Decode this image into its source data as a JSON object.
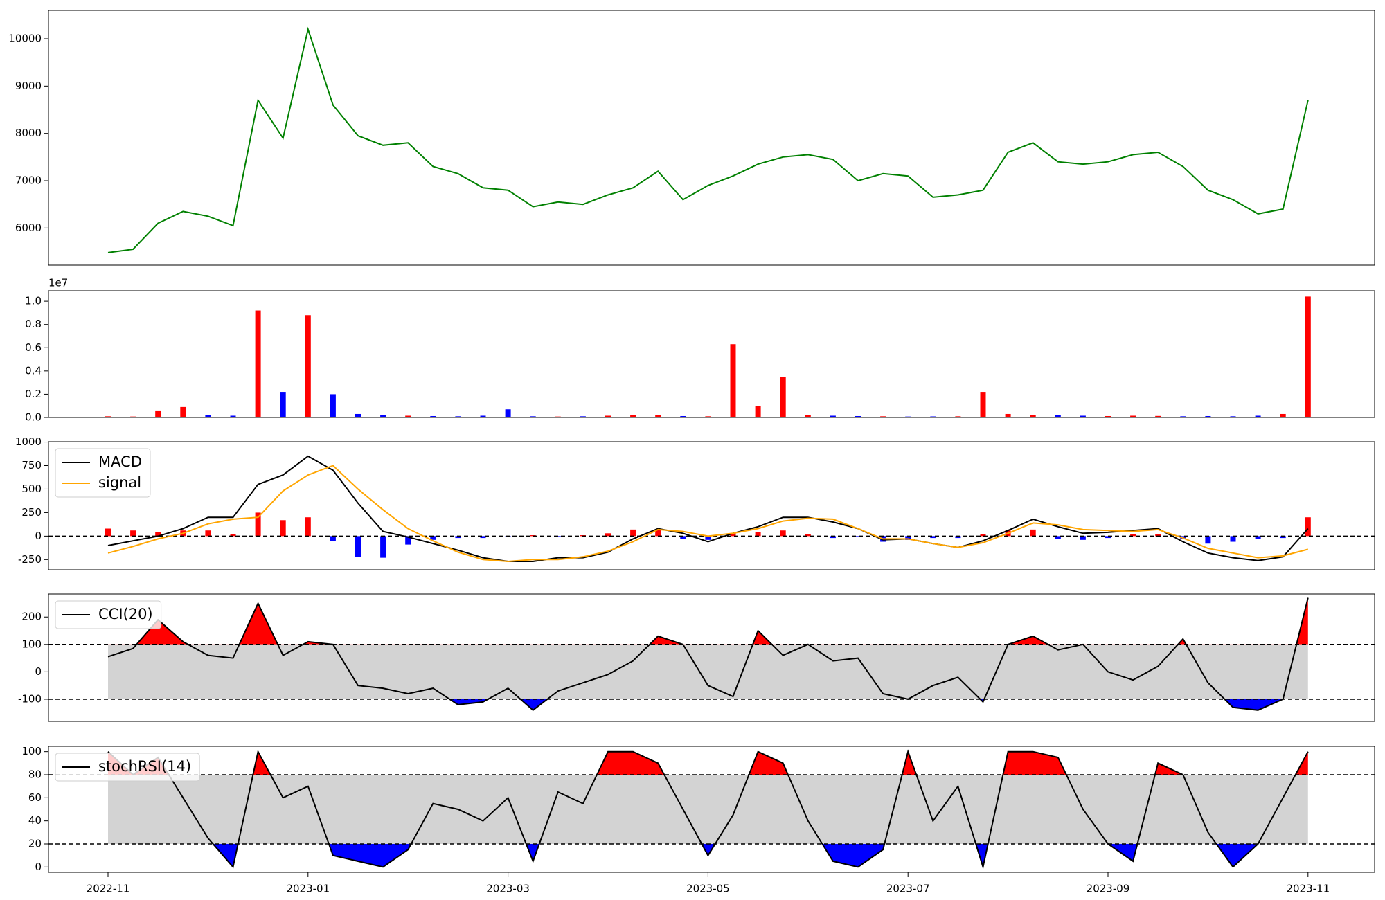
{
  "chart_data": {
    "type": "panels",
    "categories": [
      "2022-11",
      null,
      null,
      null,
      null,
      null,
      null,
      null,
      "2023-01",
      null,
      null,
      null,
      null,
      null,
      null,
      null,
      "2023-03",
      null,
      null,
      null,
      null,
      null,
      null,
      null,
      "2023-05",
      null,
      null,
      null,
      null,
      null,
      null,
      null,
      "2023-07",
      null,
      null,
      null,
      null,
      null,
      null,
      null,
      "2023-09",
      null,
      null,
      null,
      null,
      null,
      null,
      null,
      "2023-11"
    ],
    "panels": [
      {
        "type": "line",
        "color": "green",
        "values": [
          5480,
          5550,
          6100,
          6350,
          6250,
          6050,
          8700,
          7900,
          10200,
          8600,
          7950,
          7750,
          7800,
          7300,
          7150,
          6850,
          6800,
          6450,
          6550,
          6500,
          6700,
          6850,
          7200,
          6600,
          6900,
          7100,
          7350,
          7500,
          7550,
          7450,
          7000,
          7150,
          7100,
          6650,
          6700,
          6800,
          7600,
          7800,
          7400,
          7350,
          7400,
          7550,
          7600,
          7300,
          6800,
          6600,
          6300,
          6400,
          8700
        ],
        "ylim": [
          5215,
          10600
        ],
        "yticks": [
          6000,
          7000,
          8000,
          9000,
          10000
        ]
      },
      {
        "type": "bar",
        "up_color": "red",
        "down_color": "blue",
        "values": [
          100000,
          80000,
          600000,
          900000,
          200000,
          150000,
          9200000,
          2200000,
          8800000,
          2000000,
          300000,
          200000,
          150000,
          120000,
          100000,
          150000,
          700000,
          100000,
          80000,
          100000,
          150000,
          200000,
          180000,
          120000,
          100000,
          6300000,
          1000000,
          3500000,
          200000,
          150000,
          120000,
          100000,
          80000,
          90000,
          100000,
          2200000,
          300000,
          200000,
          180000,
          150000,
          120000,
          150000,
          130000,
          100000,
          120000,
          100000,
          150000,
          300000,
          10400000
        ],
        "ylim": [
          0,
          10900000
        ],
        "yticks": [
          {
            "value": 0,
            "label": "0.0"
          },
          {
            "value": 2000000,
            "label": "0.2"
          },
          {
            "value": 4000000,
            "label": "0.4"
          },
          {
            "value": 6000000,
            "label": "0.6"
          },
          {
            "value": 8000000,
            "label": "0.8"
          },
          {
            "value": 10000000,
            "label": "1.0"
          }
        ],
        "offset_label": "1e7"
      },
      {
        "type": "macd",
        "series": [
          {
            "name": "MACD",
            "color": "black",
            "values": [
              -100,
              -50,
              0,
              80,
              200,
              200,
              550,
              650,
              850,
              700,
              350,
              50,
              -10,
              -80,
              -150,
              -230,
              -270,
              -270,
              -230,
              -230,
              -170,
              -30,
              80,
              30,
              -60,
              30,
              100,
              200,
              200,
              150,
              80,
              -40,
              -30,
              -80,
              -120,
              -50,
              60,
              180,
              100,
              30,
              40,
              60,
              80,
              -60,
              -180,
              -230,
              -260,
              -220,
              80
            ]
          },
          {
            "name": "signal",
            "color": "orange",
            "values": [
              -180,
              -110,
              -30,
              30,
              130,
              180,
              200,
              480,
              650,
              750,
              500,
              280,
              80,
              -50,
              -170,
              -250,
              -270,
              -250,
              -250,
              -220,
              -160,
              -60,
              70,
              50,
              0,
              30,
              80,
              160,
              190,
              180,
              80,
              -30,
              -30,
              -80,
              -120,
              -70,
              30,
              140,
              120,
              70,
              60,
              50,
              70,
              -20,
              -130,
              -180,
              -230,
              -210,
              -140
            ]
          }
        ],
        "histogram": {
          "up_color": "red",
          "down_color": "blue",
          "values": [
            80,
            60,
            40,
            60,
            60,
            20,
            250,
            170,
            200,
            -50,
            -220,
            -230,
            -90,
            -40,
            -20,
            -20,
            -10,
            10,
            -10,
            10,
            30,
            70,
            70,
            -30,
            -40,
            30,
            40,
            60,
            20,
            -20,
            -10,
            -60,
            -40,
            -20,
            -20,
            20,
            60,
            70,
            -30,
            -40,
            -20,
            20,
            20,
            -30,
            -80,
            -60,
            -30,
            -20,
            200
          ]
        },
        "hlines": [
          0
        ],
        "ylim": [
          -358,
          1004
        ],
        "yticks": [
          -250,
          0,
          250,
          500,
          750,
          1000
        ],
        "legend": "upper left"
      },
      {
        "type": "band",
        "series": [
          {
            "name": "CCI(20)",
            "color": "black",
            "values": [
              55,
              85,
              190,
              110,
              60,
              50,
              250,
              60,
              110,
              100,
              -50,
              -60,
              -80,
              -60,
              -120,
              -110,
              -60,
              -140,
              -70,
              -40,
              -10,
              40,
              130,
              100,
              -50,
              -90,
              150,
              60,
              100,
              40,
              50,
              -80,
              -100,
              -50,
              -20,
              -110,
              100,
              130,
              80,
              100,
              0,
              -30,
              20,
              120,
              -40,
              -130,
              -140,
              -100,
              270
            ]
          }
        ],
        "band": [
          -100,
          100
        ],
        "band_color": "lightgray",
        "upper_color": "red",
        "lower_color": "blue",
        "ylim": [
          -181,
          284
        ],
        "yticks": [
          -100,
          0,
          100,
          200
        ],
        "legend": "upper left"
      },
      {
        "type": "band",
        "series": [
          {
            "name": "stochRSI(14)",
            "color": "black",
            "values": [
              100,
              80,
              95,
              60,
              25,
              0,
              100,
              60,
              70,
              10,
              5,
              0,
              15,
              55,
              50,
              40,
              60,
              5,
              65,
              55,
              100,
              100,
              90,
              50,
              10,
              45,
              100,
              90,
              40,
              5,
              0,
              15,
              100,
              40,
              70,
              0,
              100,
              100,
              95,
              50,
              20,
              5,
              90,
              80,
              30,
              0,
              20,
              60,
              100
            ]
          }
        ],
        "band": [
          20,
          80
        ],
        "band_color": "lightgray",
        "upper_color": "red",
        "lower_color": "blue",
        "ylim": [
          -4.6,
          104.6
        ],
        "yticks": [
          0,
          20,
          40,
          60,
          80,
          100
        ],
        "legend": "upper left"
      }
    ]
  }
}
